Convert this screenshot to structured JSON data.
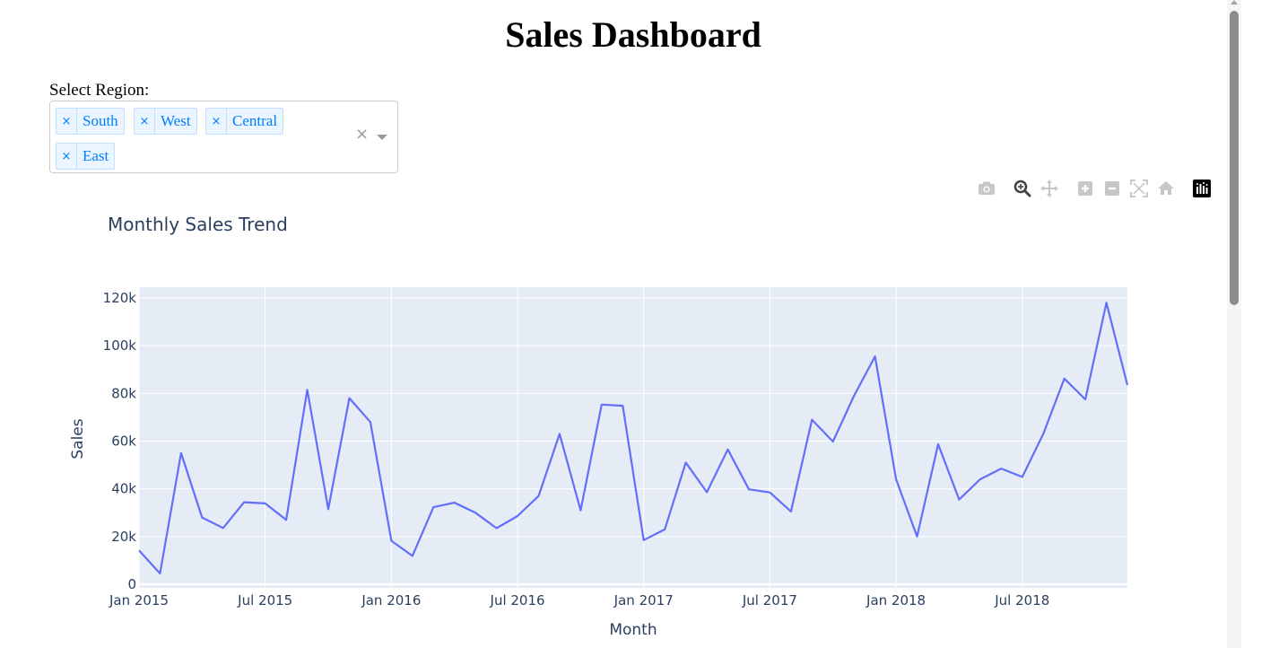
{
  "page": {
    "title": "Sales Dashboard"
  },
  "filter": {
    "label": "Select Region:",
    "selected": [
      "South",
      "West",
      "Central",
      "East"
    ],
    "remove_glyph": "×",
    "clear_glyph": "×"
  },
  "modebar": {
    "icons": [
      "camera-icon",
      "zoom-icon",
      "pan-icon",
      "zoom-in-icon",
      "zoom-out-icon",
      "autoscale-icon",
      "reset-axes-icon",
      "plotly-logo-icon"
    ]
  },
  "colors": {
    "line": "#636efa",
    "plot_bg": "#e5ecf6",
    "axis_text": "#2a3f5f",
    "chip_text": "#007eff",
    "chip_bg": "#ebf5ff"
  },
  "chart_data": {
    "type": "line",
    "title": "Monthly Sales Trend",
    "xlabel": "Month",
    "ylabel": "Sales",
    "x_ticks": [
      "Jan 2015",
      "Jul 2015",
      "Jan 2016",
      "Jul 2016",
      "Jan 2017",
      "Jul 2017",
      "Jan 2018",
      "Jul 2018"
    ],
    "y_ticks": [
      "0",
      "20k",
      "40k",
      "60k",
      "80k",
      "100k",
      "120k"
    ],
    "y_tick_values": [
      0,
      20000,
      40000,
      60000,
      80000,
      100000,
      120000
    ],
    "ylim": [
      -1500,
      124500
    ],
    "xlim": [
      "2015-01-01",
      "2018-12-01"
    ],
    "grid": true,
    "x": [
      "2015-01",
      "2015-02",
      "2015-03",
      "2015-04",
      "2015-05",
      "2015-06",
      "2015-07",
      "2015-08",
      "2015-09",
      "2015-10",
      "2015-11",
      "2015-12",
      "2016-01",
      "2016-02",
      "2016-03",
      "2016-04",
      "2016-05",
      "2016-06",
      "2016-07",
      "2016-08",
      "2016-09",
      "2016-10",
      "2016-11",
      "2016-12",
      "2017-01",
      "2017-02",
      "2017-03",
      "2017-04",
      "2017-05",
      "2017-06",
      "2017-07",
      "2017-08",
      "2017-09",
      "2017-10",
      "2017-11",
      "2017-12",
      "2018-01",
      "2018-02",
      "2018-03",
      "2018-04",
      "2018-05",
      "2018-06",
      "2018-07",
      "2018-08",
      "2018-09",
      "2018-10",
      "2018-11",
      "2018-12"
    ],
    "series": [
      {
        "values": [
          14200,
          4500,
          55000,
          28000,
          23600,
          34400,
          33900,
          27000,
          81500,
          31500,
          78000,
          68000,
          18200,
          11900,
          32300,
          34200,
          30000,
          23500,
          28600,
          37000,
          63000,
          31000,
          75300,
          74800,
          18500,
          23000,
          51000,
          38600,
          56500,
          39800,
          38500,
          30500,
          69000,
          59800,
          79000,
          95500,
          44000,
          20000,
          58700,
          35500,
          44000,
          48500,
          45000,
          63000,
          86200,
          77500,
          118000,
          83500
        ]
      }
    ]
  }
}
